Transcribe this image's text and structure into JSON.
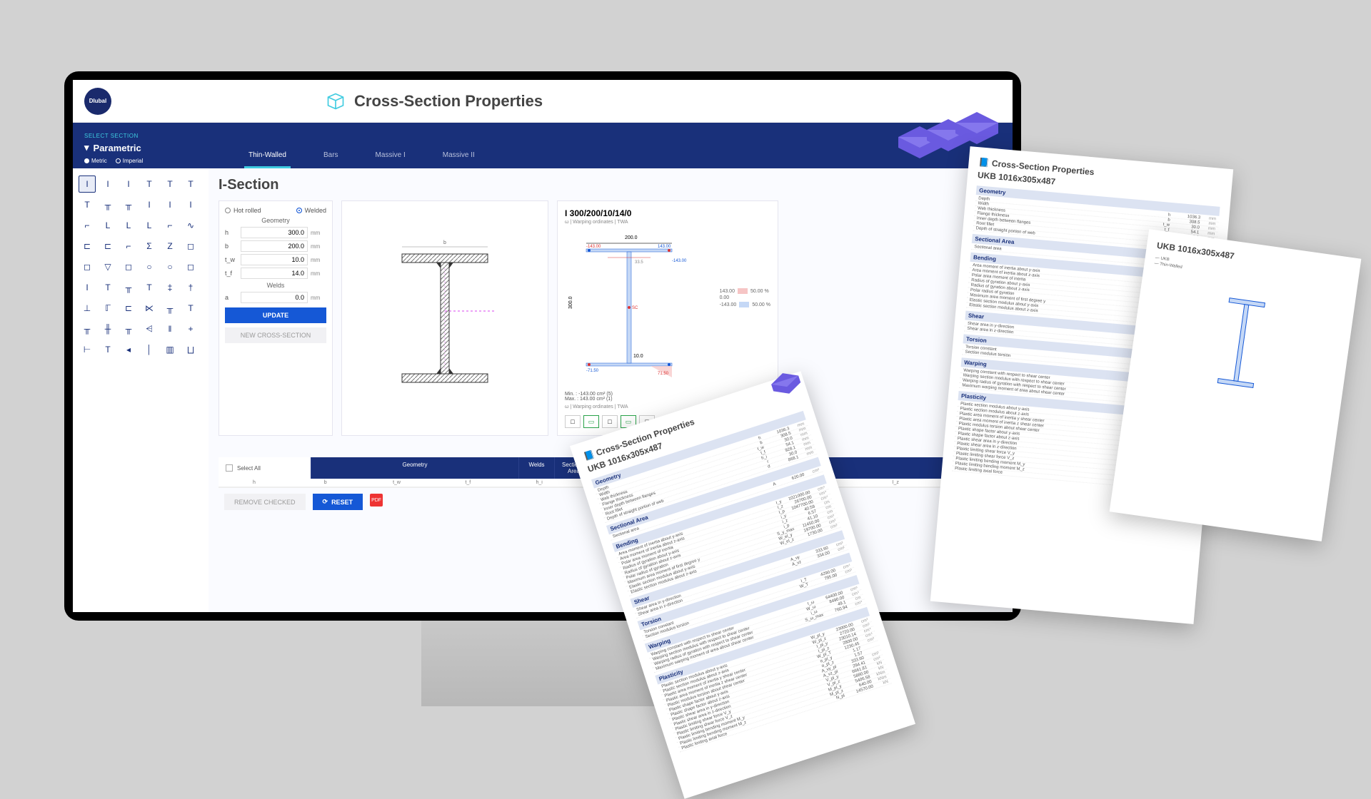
{
  "app": {
    "brand": "Dlubal",
    "title": "Cross-Section Properties"
  },
  "nav": {
    "select_label": "SELECT SECTION",
    "mode": "Parametric",
    "units": {
      "metric": "Metric",
      "imperial": "Imperial",
      "selected": "metric"
    },
    "tabs": [
      "Thin-Walled",
      "Bars",
      "Massive I",
      "Massive II"
    ],
    "active_tab": 0
  },
  "shapes": {
    "glyphs": [
      "I",
      "I",
      "I",
      "T",
      "T",
      "T",
      "T",
      "╥",
      "╥",
      "I",
      "I",
      "I",
      "⌐",
      "L",
      "L",
      "L",
      "⌐",
      "∿",
      "⊏",
      "⊏",
      "⌐",
      "Σ",
      "Z",
      "◻",
      "◻",
      "▽",
      "◻",
      "○",
      "○",
      "◻",
      "I",
      "T",
      "╥",
      "T",
      "‡",
      "†",
      "⊥",
      "ℾ",
      "⊏",
      "⋉",
      "╥",
      "T",
      "╥",
      "╫",
      "╥",
      "⩤",
      "‖",
      "+",
      "⊢",
      "T",
      "◂",
      "│",
      "▥",
      "⨆"
    ],
    "active": 0
  },
  "section": {
    "title": "I-Section",
    "type_opts": {
      "hot": "Hot rolled",
      "welded": "Welded",
      "selected": "welded"
    },
    "geometry_label": "Geometry",
    "welds_label": "Welds",
    "params": [
      {
        "lab": "h",
        "val": "300.0",
        "unit": "mm"
      },
      {
        "lab": "b",
        "val": "200.0",
        "unit": "mm"
      },
      {
        "lab": "t_w",
        "val": "10.0",
        "unit": "mm"
      },
      {
        "lab": "t_f",
        "val": "14.0",
        "unit": "mm"
      }
    ],
    "weld_params": [
      {
        "lab": "a",
        "val": "0.0",
        "unit": "mm"
      }
    ],
    "update_btn": "UPDATE",
    "new_btn": "NEW CROSS-SECTION"
  },
  "diagram": {
    "h_label": "h",
    "colors": {
      "flange": "#9aa0a6",
      "hatch": "#777",
      "centerline": "#d946ef"
    }
  },
  "result": {
    "title": "I 300/200/10/14/0",
    "sub": "ω | Warping ordinates | TWA",
    "dims": {
      "top_w": "200.0",
      "top_left": "-143.00",
      "top_right": "143.00",
      "h": "300.0",
      "tw": "10.0",
      "bot_left": "-71.50",
      "bot_right": "71.50",
      "mid": "0.00"
    },
    "legend": {
      "vals": [
        "143.00",
        "0.00",
        "-143.00"
      ],
      "pcts": [
        "50.00 %",
        "",
        "50.00 %"
      ],
      "colors": [
        "#f6c5c5",
        "",
        "#c5d8f6"
      ]
    },
    "minmax": {
      "min_label": "Min.",
      "min": "-143.00 cm² (5)",
      "max_label": "Max.",
      "max": "143.00 cm² (1)"
    },
    "sub2": "ω | Warping ordinates | TWA",
    "view_btns": [
      "□",
      "▭",
      "□",
      "▭",
      "□"
    ],
    "active_views": [
      1,
      3
    ]
  },
  "table": {
    "select_all": "Select All",
    "headers": {
      "geometry": "Geometry",
      "welds": "Welds",
      "sectional_area": "Sectional Area"
    },
    "sub_cols": [
      "h",
      "b",
      "t_w",
      "t_f",
      "h_i",
      "d",
      "a",
      "A",
      "I_y",
      "I_z",
      "i_y"
    ]
  },
  "bottom": {
    "remove": "REMOVE CHECKED",
    "reset": "RESET",
    "pdf": "PDF"
  },
  "reports": {
    "header": "Cross-Section Properties",
    "name": "UKB 1016x305x487",
    "sections": {
      "geometry": {
        "title": "Geometry",
        "rows": [
          [
            "Depth",
            "h",
            "1036.3",
            "mm"
          ],
          [
            "Width",
            "b",
            "308.5",
            "mm"
          ],
          [
            "Web thickness",
            "t_w",
            "30.0",
            "mm"
          ],
          [
            "Flange thickness",
            "t_f",
            "54.1",
            "mm"
          ],
          [
            "Inner depth between flanges",
            "h_i",
            "928.1",
            "mm"
          ],
          [
            "Root fillet",
            "r",
            "30.0",
            "mm"
          ],
          [
            "Depth of straight portion of web",
            "d",
            "868.1",
            "mm"
          ]
        ]
      },
      "sectional_area": {
        "title": "Sectional Area",
        "rows": [
          [
            "Sectional area",
            "A",
            "620.00",
            "cm²"
          ]
        ]
      },
      "bending": {
        "title": "Bending",
        "rows": [
          [
            "Area moment of inertia about y-axis",
            "I_y",
            "1021000.00",
            "cm⁴"
          ],
          [
            "Area moment of inertia about z-axis",
            "I_z",
            "26700.00",
            "cm⁴"
          ],
          [
            "Polar area moment of inertia",
            "I_p",
            "1047700.00",
            "cm⁴"
          ],
          [
            "Radius of gyration about y-axis",
            "i_y",
            "40.59",
            "cm"
          ],
          [
            "Radius of gyration about z-axis",
            "i_z",
            "6.57",
            "cm"
          ],
          [
            "Polar radius of gyration",
            "i_p",
            "41.10",
            "cm"
          ],
          [
            "Maximum area moment of first degree y",
            "S_y_max",
            "11450.00",
            "cm³"
          ],
          [
            "Elastic section modulus about y-axis",
            "W_el_y",
            "19700.00",
            "cm³"
          ],
          [
            "Elastic section modulus about z-axis",
            "W_el_z",
            "1730.00",
            "cm³"
          ]
        ]
      },
      "shear": {
        "title": "Shear",
        "rows": [
          [
            "Shear area in y-direction",
            "A_vy",
            "333.60",
            "cm²"
          ],
          [
            "Shear area in z-direction",
            "A_vz",
            "334.00",
            "cm²"
          ]
        ]
      },
      "torsion": {
        "title": "Torsion",
        "rows": [
          [
            "Torsion constant",
            "I_T",
            "4290.00",
            "cm⁴"
          ],
          [
            "Section modulus torsion",
            "W_T",
            "795.00",
            "cm³"
          ]
        ]
      },
      "warping": {
        "title": "Warping",
        "rows": [
          [
            "Warping constant with respect to shear center",
            "I_ω",
            "64400.00",
            "cm⁶"
          ],
          [
            "Warping section modulus with respect to shear center",
            "W_ω",
            "8490.00",
            "cm⁴"
          ],
          [
            "Warping radius of gyration with respect to shear center",
            "i_ω",
            "49.1",
            "cm"
          ],
          [
            "Maximum warping moment of area about shear center",
            "S_ω_max",
            "760.94",
            "cm⁴"
          ]
        ]
      },
      "plasticity": {
        "title": "Plasticity",
        "rows": [
          [
            "Plastic section modulus about y-axis",
            "W_pl_y",
            "23000.00",
            "cm³"
          ],
          [
            "Plastic section modulus about z-axis",
            "W_pl_z",
            "2720.00",
            "cm³"
          ],
          [
            "Plastic area moment of inertia y shear center",
            "I_pl_y",
            "23010.14",
            "cm⁴"
          ],
          [
            "Plastic area moment of inertia z shear center",
            "I_pl_z",
            "2800.00",
            "cm⁴"
          ],
          [
            "Plastic modulus torsion about shear center",
            "W_pl_T",
            "1230.45",
            "cm³"
          ],
          [
            "Plastic shape factor about y-axis",
            "α_pl_y",
            "1.17",
            ""
          ],
          [
            "Plastic shape factor about z-axis",
            "α_pl_z",
            "1.57",
            ""
          ],
          [
            "Plastic shear area in y-direction",
            "A_vy_pl",
            "333.60",
            "cm²"
          ],
          [
            "Plastic shear area in z-direction",
            "A_vz_pl",
            "294.41",
            "cm²"
          ],
          [
            "Plastic limiting shear force V_y",
            "V_pl_y",
            "6661.81",
            "kN"
          ],
          [
            "Plastic limiting shear force V_z",
            "V_pl_z",
            "5880.00",
            "kN"
          ],
          [
            "Plastic limiting bending moment M_y",
            "M_pl_y",
            "5406.58",
            "kNm"
          ],
          [
            "Plastic limiting bending moment M_z",
            "M_pl_z",
            "640.00",
            "kNm"
          ],
          [
            "Plastic limiting axial force",
            "N_pl",
            "14570.00",
            "kN"
          ]
        ]
      }
    },
    "right_panel": {
      "items": [
        "UKB",
        "Thin-Walled"
      ]
    }
  },
  "colors": {
    "nav_bg": "#19307a",
    "accent": "#3ecbe0",
    "primary_btn": "#1558d6",
    "iso_purple": "#6a5ae0"
  }
}
